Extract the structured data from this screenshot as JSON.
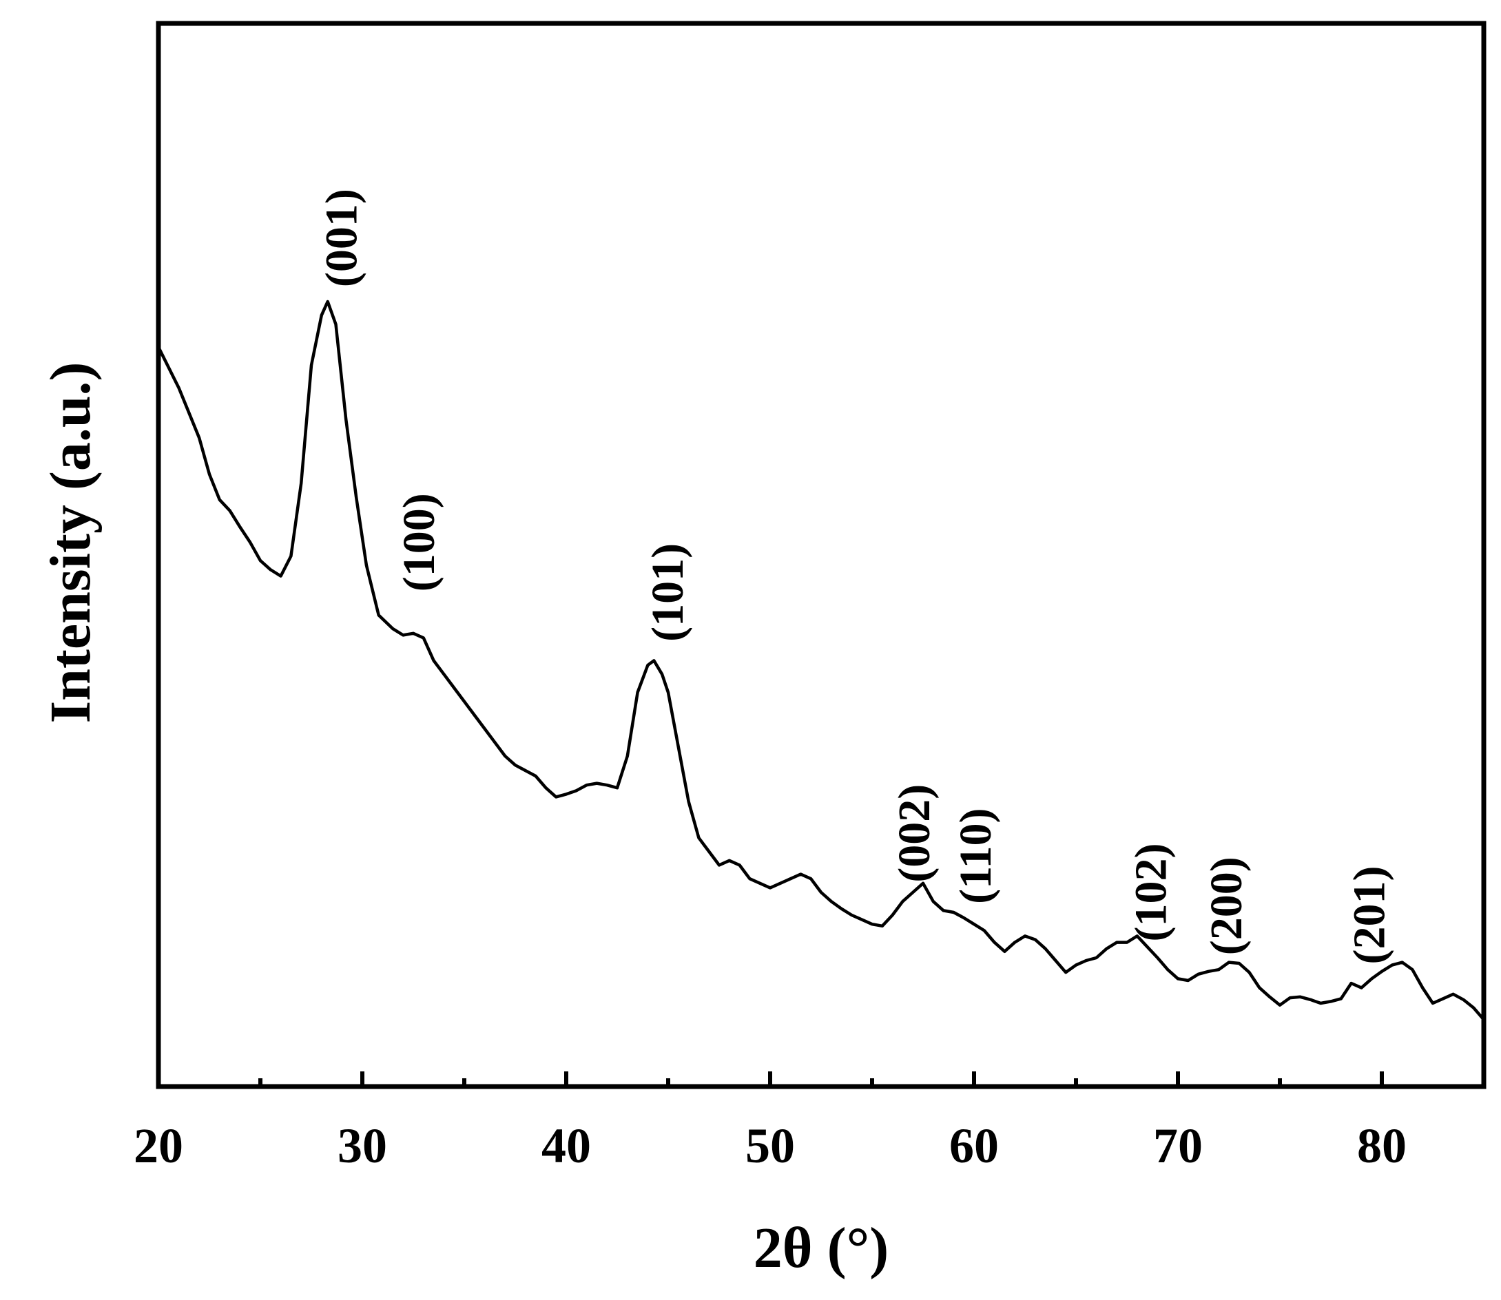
{
  "chart_data": {
    "type": "line",
    "title": "",
    "xlabel": "2θ (°)",
    "ylabel": "Intensity (a.u.)",
    "xlim": [
      20,
      85
    ],
    "ylim": [
      0,
      100
    ],
    "y_ticks_shown": false,
    "grid": false,
    "legend": "none",
    "x_ticks": [
      {
        "value": 20,
        "label": "20"
      },
      {
        "value": 30,
        "label": "30"
      },
      {
        "value": 40,
        "label": "40"
      },
      {
        "value": 50,
        "label": "50"
      },
      {
        "value": 60,
        "label": "60"
      },
      {
        "value": 70,
        "label": "70"
      },
      {
        "value": 80,
        "label": "80"
      }
    ],
    "x_minor_ticks": [
      25,
      35,
      45,
      55,
      65,
      75,
      85
    ],
    "series": [
      {
        "color": "#000000",
        "points": [
          [
            20.0,
            80.0
          ],
          [
            21.0,
            75.5
          ],
          [
            22.0,
            70.0
          ],
          [
            22.5,
            66.0
          ],
          [
            23.0,
            63.2
          ],
          [
            23.5,
            62.0
          ],
          [
            24.0,
            60.2
          ],
          [
            24.5,
            58.5
          ],
          [
            25.0,
            56.5
          ],
          [
            25.5,
            55.5
          ],
          [
            26.0,
            54.8
          ],
          [
            26.5,
            57.0
          ],
          [
            27.0,
            65.0
          ],
          [
            27.5,
            78.0
          ],
          [
            28.0,
            83.5
          ],
          [
            28.3,
            85.0
          ],
          [
            28.7,
            82.5
          ],
          [
            29.2,
            72.0
          ],
          [
            29.7,
            63.5
          ],
          [
            30.2,
            56.0
          ],
          [
            30.8,
            50.5
          ],
          [
            31.5,
            49.0
          ],
          [
            32.0,
            48.3
          ],
          [
            32.5,
            48.5
          ],
          [
            33.0,
            48.0
          ],
          [
            33.5,
            45.5
          ],
          [
            34.0,
            44.0
          ],
          [
            34.5,
            42.5
          ],
          [
            35.0,
            41.0
          ],
          [
            35.5,
            39.5
          ],
          [
            36.0,
            38.0
          ],
          [
            36.5,
            36.5
          ],
          [
            37.0,
            35.0
          ],
          [
            37.5,
            34.0
          ],
          [
            38.0,
            33.4
          ],
          [
            38.5,
            32.8
          ],
          [
            39.0,
            31.5
          ],
          [
            39.5,
            30.5
          ],
          [
            40.0,
            30.8
          ],
          [
            40.5,
            31.2
          ],
          [
            41.0,
            31.8
          ],
          [
            41.5,
            32.0
          ],
          [
            42.0,
            31.8
          ],
          [
            42.5,
            31.5
          ],
          [
            43.0,
            35.0
          ],
          [
            43.5,
            42.0
          ],
          [
            44.0,
            45.0
          ],
          [
            44.3,
            45.5
          ],
          [
            44.7,
            44.0
          ],
          [
            45.0,
            42.0
          ],
          [
            45.5,
            36.0
          ],
          [
            46.0,
            30.0
          ],
          [
            46.5,
            26.0
          ],
          [
            47.0,
            24.5
          ],
          [
            47.5,
            23.0
          ],
          [
            48.0,
            23.5
          ],
          [
            48.5,
            23.0
          ],
          [
            49.0,
            21.5
          ],
          [
            49.5,
            21.0
          ],
          [
            50.0,
            20.5
          ],
          [
            50.5,
            21.0
          ],
          [
            51.0,
            21.5
          ],
          [
            51.5,
            22.0
          ],
          [
            52.0,
            21.5
          ],
          [
            52.5,
            20.0
          ],
          [
            53.0,
            19.0
          ],
          [
            53.5,
            18.2
          ],
          [
            54.0,
            17.5
          ],
          [
            54.5,
            17.0
          ],
          [
            55.0,
            16.5
          ],
          [
            55.5,
            16.3
          ],
          [
            56.0,
            17.5
          ],
          [
            56.5,
            19.0
          ],
          [
            57.0,
            20.0
          ],
          [
            57.5,
            21.0
          ],
          [
            58.0,
            19.0
          ],
          [
            58.5,
            18.0
          ],
          [
            59.0,
            17.8
          ],
          [
            59.5,
            17.2
          ],
          [
            60.0,
            16.5
          ],
          [
            60.5,
            15.8
          ],
          [
            61.0,
            14.5
          ],
          [
            61.5,
            13.5
          ],
          [
            62.0,
            14.5
          ],
          [
            62.5,
            15.2
          ],
          [
            63.0,
            14.8
          ],
          [
            63.5,
            13.8
          ],
          [
            64.0,
            12.5
          ],
          [
            64.5,
            11.2
          ],
          [
            65.0,
            12.0
          ],
          [
            65.5,
            12.5
          ],
          [
            66.0,
            12.8
          ],
          [
            66.5,
            13.8
          ],
          [
            67.0,
            14.5
          ],
          [
            67.5,
            14.5
          ],
          [
            68.0,
            15.2
          ],
          [
            68.5,
            14.0
          ],
          [
            69.0,
            12.8
          ],
          [
            69.5,
            11.5
          ],
          [
            70.0,
            10.5
          ],
          [
            70.5,
            10.3
          ],
          [
            71.0,
            11.0
          ],
          [
            71.5,
            11.3
          ],
          [
            72.0,
            11.5
          ],
          [
            72.5,
            12.3
          ],
          [
            73.0,
            12.2
          ],
          [
            73.5,
            11.2
          ],
          [
            74.0,
            9.5
          ],
          [
            74.5,
            8.5
          ],
          [
            75.0,
            7.6
          ],
          [
            75.5,
            8.4
          ],
          [
            76.0,
            8.5
          ],
          [
            76.5,
            8.2
          ],
          [
            77.0,
            7.8
          ],
          [
            77.5,
            8.0
          ],
          [
            78.0,
            8.3
          ],
          [
            78.5,
            10.0
          ],
          [
            79.0,
            9.5
          ],
          [
            79.5,
            10.5
          ],
          [
            80.0,
            11.3
          ],
          [
            80.5,
            12.0
          ],
          [
            81.0,
            12.3
          ],
          [
            81.5,
            11.5
          ],
          [
            82.0,
            9.5
          ],
          [
            82.5,
            7.8
          ],
          [
            83.0,
            8.3
          ],
          [
            83.5,
            8.8
          ],
          [
            84.0,
            8.2
          ],
          [
            84.5,
            7.3
          ],
          [
            85.0,
            6.0
          ]
        ]
      }
    ],
    "annotations": [
      {
        "label": "(001)",
        "x": 29.2,
        "y": 92.0
      },
      {
        "label": "(100)",
        "x": 33.0,
        "y": 58.5
      },
      {
        "label": "(101)",
        "x": 45.2,
        "y": 53.0
      },
      {
        "label": "(002)",
        "x": 57.3,
        "y": 26.5
      },
      {
        "label": "(110)",
        "x": 60.3,
        "y": 24.0
      },
      {
        "label": "(102)",
        "x": 68.9,
        "y": 20.0
      },
      {
        "label": "(200)",
        "x": 72.6,
        "y": 18.5
      },
      {
        "label": "(201)",
        "x": 79.6,
        "y": 17.5
      }
    ]
  }
}
